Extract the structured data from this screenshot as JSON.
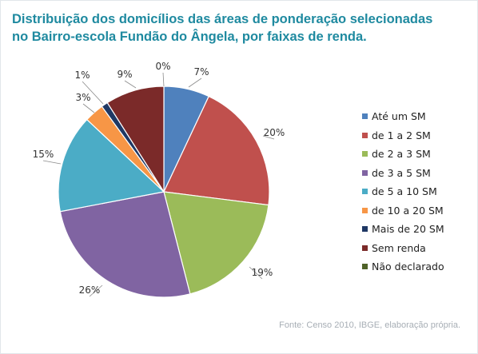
{
  "chart_data": {
    "type": "pie",
    "title_lines": [
      "Distribuição dos domicílios das áreas de ponderação selecionadas",
      "no Bairro-escola Fundão do Ângela, por faixas de renda."
    ],
    "slices": [
      {
        "label": "Até um SM",
        "value": 7,
        "display": "7%",
        "color": "#4f81bd"
      },
      {
        "label": "de 1 a 2 SM",
        "value": 20,
        "display": "20%",
        "color": "#c0504d"
      },
      {
        "label": "de 2 a 3 SM",
        "value": 19,
        "display": "19%",
        "color": "#9bbb59"
      },
      {
        "label": "de 3 a 5 SM",
        "value": 26,
        "display": "26%",
        "color": "#8064a2"
      },
      {
        "label": "de 5 a 10 SM",
        "value": 15,
        "display": "15%",
        "color": "#4bacc6"
      },
      {
        "label": "de 10 a 20 SM",
        "value": 3,
        "display": "3%",
        "color": "#f79646"
      },
      {
        "label": "Mais de 20 SM",
        "value": 1,
        "display": "1%",
        "color": "#1f3864"
      },
      {
        "label": "Sem renda",
        "value": 9,
        "display": "9%",
        "color": "#7b2a29"
      },
      {
        "label": "Não declarado",
        "value": 0,
        "display": "0%",
        "color": "#4f6228"
      }
    ],
    "legend_position": "right",
    "source": "Fonte: Censo 2010, IBGE, elaboração própria."
  }
}
